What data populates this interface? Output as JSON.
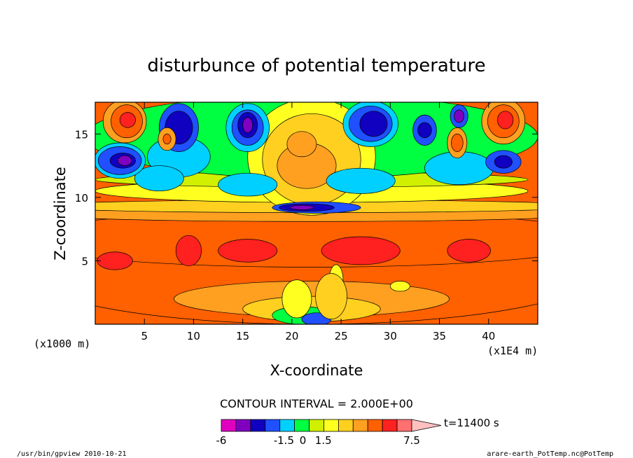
{
  "chart_data": {
    "type": "heatmap",
    "title": "disturbunce of potential temperature",
    "xlabel": "X-coordinate",
    "ylabel": "Z-coordinate",
    "x_unit_left": "(x1000 m)",
    "x_unit_right": "(x1E4 m)",
    "xlim": [
      0,
      45
    ],
    "ylim": [
      0,
      17.5
    ],
    "x_ticks": [
      5,
      10,
      15,
      20,
      25,
      30,
      35,
      40
    ],
    "y_ticks": [
      5,
      10,
      15
    ],
    "contour_interval": "CONTOUR INTERVAL = 2.000E+00",
    "time_label": "t=11400 s",
    "colorbar": {
      "colors": [
        "#e000c0",
        "#8000c0",
        "#1000c0",
        "#2050ff",
        "#00d0ff",
        "#00ff40",
        "#d0f000",
        "#ffff20",
        "#ffd020",
        "#ffa020",
        "#ff6000",
        "#ff2020",
        "#ff7070",
        "#ffc0c0"
      ],
      "labels": [
        {
          "text": "-6",
          "at": 0
        },
        {
          "text": "-1.5",
          "at": 4.6
        },
        {
          "text": "0",
          "at": 6
        },
        {
          "text": "1.5",
          "at": 7.5
        },
        {
          "text": "7.5",
          "at": 14
        }
      ]
    },
    "regions": [
      {
        "kind": "ellipse",
        "cx": 22,
        "cy": 4.5,
        "rx": 30,
        "ry": 4.5,
        "color": "#ff6000"
      },
      {
        "kind": "ellipse",
        "cx": 22,
        "cy": 6.7,
        "rx": 30,
        "ry": 2.2,
        "color": "#ff6000"
      },
      {
        "kind": "ellipse",
        "cx": 22,
        "cy": 8.7,
        "rx": 28,
        "ry": 0.6,
        "color": "#ffa020"
      },
      {
        "kind": "ellipse",
        "cx": 22,
        "cy": 9.3,
        "rx": 28,
        "ry": 0.5,
        "color": "#ffd020"
      },
      {
        "kind": "ellipse",
        "cx": 22,
        "cy": 2.0,
        "rx": 14,
        "ry": 1.4,
        "color": "#ffa020"
      },
      {
        "kind": "ellipse",
        "cx": 22,
        "cy": 1.2,
        "rx": 7,
        "ry": 1.0,
        "color": "#ffd020"
      },
      {
        "kind": "ellipse",
        "cx": 21,
        "cy": 0.7,
        "rx": 3,
        "ry": 0.7,
        "color": "#00ff40"
      },
      {
        "kind": "ellipse",
        "cx": 22.5,
        "cy": 0.4,
        "rx": 1.5,
        "ry": 0.5,
        "color": "#2050ff"
      },
      {
        "kind": "ellipse",
        "cx": 24.5,
        "cy": 3.5,
        "rx": 0.7,
        "ry": 1.2,
        "color": "#ffff20"
      },
      {
        "kind": "ellipse",
        "cx": 24.2,
        "cy": 3.6,
        "rx": 0.3,
        "ry": 0.4,
        "color": "#00ff40"
      },
      {
        "kind": "ellipse",
        "cx": 31,
        "cy": 3.0,
        "rx": 1.0,
        "ry": 0.4,
        "color": "#ffff20"
      },
      {
        "kind": "ellipse",
        "cx": 2.0,
        "cy": 5.0,
        "rx": 1.8,
        "ry": 0.7,
        "color": "#ff2020"
      },
      {
        "kind": "ellipse",
        "cx": 9.5,
        "cy": 5.8,
        "rx": 1.3,
        "ry": 1.2,
        "color": "#ff2020"
      },
      {
        "kind": "ellipse",
        "cx": 15.5,
        "cy": 5.8,
        "rx": 3.0,
        "ry": 0.9,
        "color": "#ff2020"
      },
      {
        "kind": "ellipse",
        "cx": 27,
        "cy": 5.8,
        "rx": 4.0,
        "ry": 1.1,
        "color": "#ff2020"
      },
      {
        "kind": "ellipse",
        "cx": 38,
        "cy": 5.8,
        "rx": 2.2,
        "ry": 0.9,
        "color": "#ff2020"
      },
      {
        "kind": "ellipse",
        "cx": 22,
        "cy": 10.5,
        "rx": 22,
        "ry": 0.9,
        "color": "#ffff20"
      },
      {
        "kind": "ellipse",
        "cx": 22,
        "cy": 11.4,
        "rx": 22,
        "ry": 0.6,
        "color": "#d0f000"
      },
      {
        "kind": "ellipse",
        "cx": 22,
        "cy": 14.8,
        "rx": 23,
        "ry": 3.3,
        "color": "#00ff40"
      },
      {
        "kind": "ellipse",
        "cx": 22,
        "cy": 13.2,
        "rx": 6.5,
        "ry": 4.6,
        "color": "#ffff20"
      },
      {
        "kind": "ellipse",
        "cx": 22,
        "cy": 13.0,
        "rx": 5.0,
        "ry": 3.6,
        "color": "#ffd020"
      },
      {
        "kind": "ellipse",
        "cx": 21.5,
        "cy": 12.5,
        "rx": 3.0,
        "ry": 1.8,
        "color": "#ffa020"
      },
      {
        "kind": "ellipse",
        "cx": 21,
        "cy": 14.2,
        "rx": 1.5,
        "ry": 1.0,
        "color": "#ffa020"
      },
      {
        "kind": "ellipse",
        "cx": 8.5,
        "cy": 13.2,
        "rx": 3.2,
        "ry": 1.6,
        "color": "#00d0ff"
      },
      {
        "kind": "ellipse",
        "cx": 6.5,
        "cy": 11.5,
        "rx": 2.5,
        "ry": 1.0,
        "color": "#00d0ff"
      },
      {
        "kind": "ellipse",
        "cx": 15.5,
        "cy": 11.0,
        "rx": 3.0,
        "ry": 0.9,
        "color": "#00d0ff"
      },
      {
        "kind": "ellipse",
        "cx": 27,
        "cy": 11.3,
        "rx": 3.5,
        "ry": 1.0,
        "color": "#00d0ff"
      },
      {
        "kind": "ellipse",
        "cx": 37,
        "cy": 12.3,
        "rx": 3.5,
        "ry": 1.3,
        "color": "#00d0ff"
      },
      {
        "kind": "ellipse",
        "cx": 2.5,
        "cy": 12.9,
        "rx": 2.6,
        "ry": 1.4,
        "color": "#00d0ff"
      },
      {
        "kind": "ellipse",
        "cx": 2.5,
        "cy": 12.9,
        "rx": 2.2,
        "ry": 1.1,
        "color": "#2050ff"
      },
      {
        "kind": "ellipse",
        "cx": 2.8,
        "cy": 12.9,
        "rx": 1.3,
        "ry": 0.6,
        "color": "#1000c0"
      },
      {
        "kind": "ellipse",
        "cx": 3.0,
        "cy": 12.9,
        "rx": 0.7,
        "ry": 0.4,
        "color": "#8000c0"
      },
      {
        "kind": "ellipse",
        "cx": 3.0,
        "cy": 16.0,
        "rx": 2.2,
        "ry": 1.7,
        "color": "#ffa020"
      },
      {
        "kind": "ellipse",
        "cx": 3.2,
        "cy": 16.0,
        "rx": 1.6,
        "ry": 1.3,
        "color": "#ff6000"
      },
      {
        "kind": "ellipse",
        "cx": 3.3,
        "cy": 16.1,
        "rx": 0.8,
        "ry": 0.6,
        "color": "#ff2020"
      },
      {
        "kind": "ellipse",
        "cx": 8.5,
        "cy": 15.5,
        "rx": 2.0,
        "ry": 1.9,
        "color": "#2050ff"
      },
      {
        "kind": "ellipse",
        "cx": 8.5,
        "cy": 15.5,
        "rx": 1.4,
        "ry": 1.3,
        "color": "#1000c0"
      },
      {
        "kind": "ellipse",
        "cx": 7.3,
        "cy": 14.6,
        "rx": 0.9,
        "ry": 0.9,
        "color": "#ffa020"
      },
      {
        "kind": "ellipse",
        "cx": 7.3,
        "cy": 14.6,
        "rx": 0.4,
        "ry": 0.4,
        "color": "#ff6000"
      },
      {
        "kind": "ellipse",
        "cx": 15.5,
        "cy": 15.5,
        "rx": 2.2,
        "ry": 1.9,
        "color": "#00d0ff"
      },
      {
        "kind": "ellipse",
        "cx": 15.5,
        "cy": 15.5,
        "rx": 1.6,
        "ry": 1.4,
        "color": "#2050ff"
      },
      {
        "kind": "ellipse",
        "cx": 15.5,
        "cy": 15.7,
        "rx": 1.0,
        "ry": 1.0,
        "color": "#1000c0"
      },
      {
        "kind": "ellipse",
        "cx": 15.5,
        "cy": 15.7,
        "rx": 0.5,
        "ry": 0.6,
        "color": "#8000c0"
      },
      {
        "kind": "ellipse",
        "cx": 28,
        "cy": 15.8,
        "rx": 2.8,
        "ry": 1.8,
        "color": "#00d0ff"
      },
      {
        "kind": "ellipse",
        "cx": 28,
        "cy": 15.8,
        "rx": 2.2,
        "ry": 1.4,
        "color": "#2050ff"
      },
      {
        "kind": "ellipse",
        "cx": 28.3,
        "cy": 15.8,
        "rx": 1.4,
        "ry": 1.0,
        "color": "#1000c0"
      },
      {
        "kind": "ellipse",
        "cx": 33.5,
        "cy": 15.3,
        "rx": 1.2,
        "ry": 1.2,
        "color": "#2050ff"
      },
      {
        "kind": "ellipse",
        "cx": 33.5,
        "cy": 15.3,
        "rx": 0.7,
        "ry": 0.6,
        "color": "#1000c0"
      },
      {
        "kind": "ellipse",
        "cx": 37.0,
        "cy": 16.4,
        "rx": 0.9,
        "ry": 0.9,
        "color": "#2050ff"
      },
      {
        "kind": "ellipse",
        "cx": 37.0,
        "cy": 16.4,
        "rx": 0.5,
        "ry": 0.5,
        "color": "#8000c0"
      },
      {
        "kind": "ellipse",
        "cx": 36.8,
        "cy": 14.3,
        "rx": 1.0,
        "ry": 1.2,
        "color": "#ffa020"
      },
      {
        "kind": "ellipse",
        "cx": 36.8,
        "cy": 14.3,
        "rx": 0.6,
        "ry": 0.7,
        "color": "#ff6000"
      },
      {
        "kind": "ellipse",
        "cx": 41.5,
        "cy": 16.0,
        "rx": 2.2,
        "ry": 1.8,
        "color": "#ffa020"
      },
      {
        "kind": "ellipse",
        "cx": 41.5,
        "cy": 16.0,
        "rx": 1.6,
        "ry": 1.3,
        "color": "#ff6000"
      },
      {
        "kind": "ellipse",
        "cx": 41.7,
        "cy": 16.1,
        "rx": 0.8,
        "ry": 0.7,
        "color": "#ff2020"
      },
      {
        "kind": "ellipse",
        "cx": 41.5,
        "cy": 12.8,
        "rx": 1.8,
        "ry": 0.9,
        "color": "#2050ff"
      },
      {
        "kind": "ellipse",
        "cx": 41.5,
        "cy": 12.8,
        "rx": 0.9,
        "ry": 0.5,
        "color": "#1000c0"
      },
      {
        "kind": "ellipse",
        "cx": 22.5,
        "cy": 9.2,
        "rx": 4.5,
        "ry": 0.45,
        "color": "#2050ff"
      },
      {
        "kind": "ellipse",
        "cx": 21.5,
        "cy": 9.2,
        "rx": 2.8,
        "ry": 0.3,
        "color": "#1000c0"
      },
      {
        "kind": "ellipse",
        "cx": 21.0,
        "cy": 9.2,
        "rx": 1.2,
        "ry": 0.18,
        "color": "#8000c0"
      },
      {
        "kind": "ellipse",
        "cx": 20.5,
        "cy": 2.0,
        "rx": 1.5,
        "ry": 1.5,
        "color": "#ffff20"
      },
      {
        "kind": "ellipse",
        "cx": 24.0,
        "cy": 2.2,
        "rx": 1.6,
        "ry": 1.8,
        "color": "#ffd020"
      }
    ]
  },
  "footer": {
    "left": "/usr/bin/gpview  2010-10-21",
    "right": "arare-earth_PotTemp.nc@PotTemp"
  }
}
